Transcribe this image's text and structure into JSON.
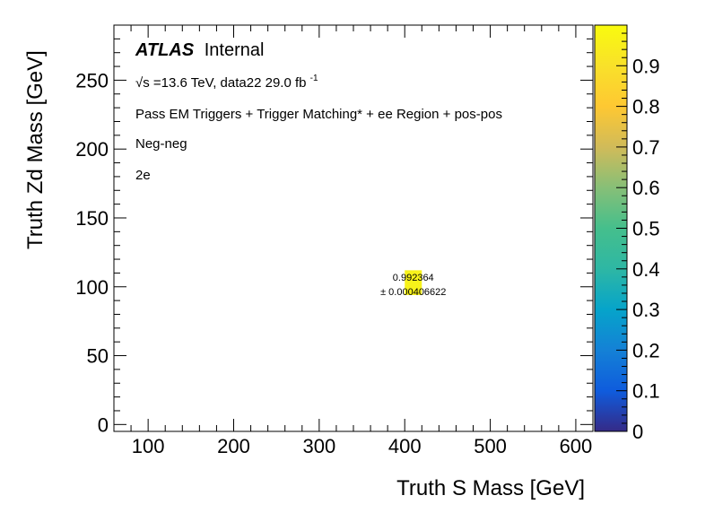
{
  "chart_data": {
    "type": "heatmap",
    "xlabel": "Truth S Mass [GeV]",
    "ylabel": "Truth Zd Mass [GeV]",
    "xlim": [
      60,
      620
    ],
    "ylim": [
      -5,
      290
    ],
    "x_ticks": [
      100,
      200,
      300,
      400,
      500,
      600
    ],
    "y_ticks": [
      0,
      50,
      100,
      150,
      200,
      250
    ],
    "zlim": [
      0,
      1.0
    ],
    "z_ticks": [
      0,
      0.1,
      0.2,
      0.3,
      0.4,
      0.5,
      0.6,
      0.7,
      0.8,
      0.9
    ],
    "colormap": "viridis-like",
    "cells": [
      {
        "x_range": [
          400,
          420
        ],
        "y_range": [
          94,
          112
        ],
        "value": 0.992364,
        "value_label": "0.992364",
        "error_label": "± 0.000406622",
        "color": "#f7f21b"
      }
    ],
    "annotations": {
      "atlas_bold": "ATLAS",
      "atlas_rest": "Internal",
      "energy_sqrt": "√s",
      "energy_rest": "=13.6 TeV, data22 29.0 fb",
      "energy_sup": "-1",
      "selection": "Pass EM Triggers + Trigger Matching* + ee Region + pos-pos",
      "charge": "Neg-neg",
      "channel": "2e"
    }
  }
}
